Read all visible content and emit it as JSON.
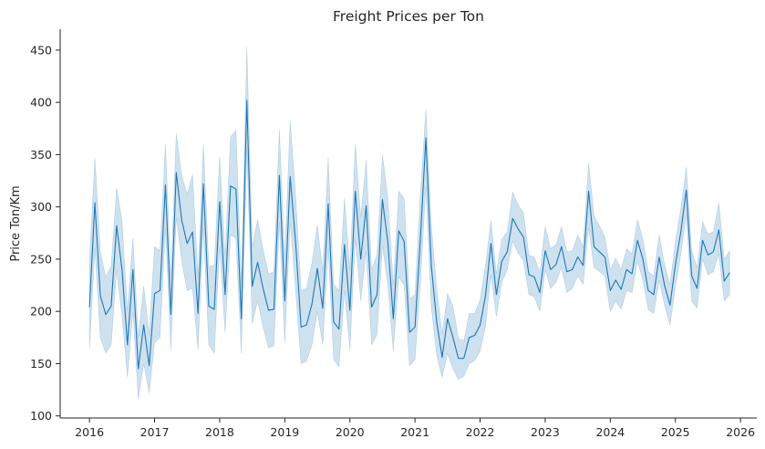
{
  "chart_data": {
    "type": "line",
    "title": "Freight Prices per Ton",
    "xlabel": "",
    "ylabel": "Price Ton/Km",
    "xlim": [
      2015.55,
      2026.25
    ],
    "ylim": [
      98,
      470
    ],
    "x_ticks": [
      2016,
      2017,
      2018,
      2019,
      2020,
      2021,
      2022,
      2023,
      2024,
      2025,
      2026
    ],
    "x_tick_labels": [
      "2016",
      "2017",
      "2018",
      "2019",
      "2020",
      "2021",
      "2022",
      "2023",
      "2024",
      "2025",
      "2026"
    ],
    "y_ticks": [
      100,
      150,
      200,
      250,
      300,
      350,
      400,
      450
    ],
    "y_tick_labels": [
      "100",
      "150",
      "200",
      "250",
      "300",
      "350",
      "400",
      "450"
    ],
    "grid": false,
    "line_color": "#1f77b4",
    "band_color": "#1f77b4",
    "x": [
      2016.0,
      2016.083,
      2016.167,
      2016.25,
      2016.333,
      2016.417,
      2016.5,
      2016.583,
      2016.667,
      2016.75,
      2016.833,
      2016.917,
      2017.0,
      2017.083,
      2017.167,
      2017.25,
      2017.333,
      2017.417,
      2017.5,
      2017.583,
      2017.667,
      2017.75,
      2017.833,
      2017.917,
      2018.0,
      2018.083,
      2018.167,
      2018.25,
      2018.333,
      2018.417,
      2018.5,
      2018.583,
      2018.667,
      2018.75,
      2018.833,
      2018.917,
      2019.0,
      2019.083,
      2019.167,
      2019.25,
      2019.333,
      2019.417,
      2019.5,
      2019.583,
      2019.667,
      2019.75,
      2019.833,
      2019.917,
      2020.0,
      2020.083,
      2020.167,
      2020.25,
      2020.333,
      2020.417,
      2020.5,
      2020.583,
      2020.667,
      2020.75,
      2020.833,
      2020.917,
      2021.0,
      2021.083,
      2021.167,
      2021.25,
      2021.333,
      2021.417,
      2021.5,
      2021.583,
      2021.667,
      2021.75,
      2021.833,
      2021.917,
      2022.0,
      2022.083,
      2022.167,
      2022.25,
      2022.333,
      2022.417,
      2022.5,
      2022.583,
      2022.667,
      2022.75,
      2022.833,
      2022.917,
      2023.0,
      2023.083,
      2023.167,
      2023.25,
      2023.333,
      2023.417,
      2023.5,
      2023.583,
      2023.667,
      2023.75,
      2023.833,
      2023.917,
      2024.0,
      2024.083,
      2024.167,
      2024.25,
      2024.333,
      2024.417,
      2024.5,
      2024.583,
      2024.667,
      2024.75,
      2024.833,
      2024.917,
      2025.0,
      2025.083,
      2025.167,
      2025.25,
      2025.333,
      2025.417,
      2025.5,
      2025.583,
      2025.667,
      2025.75,
      2025.833
    ],
    "series": [
      {
        "values": [
          204,
          304,
          215,
          197,
          205,
          282,
          240,
          168,
          240,
          145,
          187,
          148,
          217,
          220,
          321,
          197,
          333,
          287,
          265,
          276,
          198,
          322,
          205,
          202,
          305,
          216,
          320,
          317,
          193,
          402,
          224,
          247,
          222,
          201,
          202,
          330,
          210,
          329,
          265,
          185,
          187,
          207,
          241,
          203,
          303,
          190,
          183,
          264,
          201,
          315,
          250,
          301,
          204,
          216,
          307,
          266,
          193,
          277,
          267,
          180,
          185,
          270,
          366,
          244,
          190,
          156,
          193,
          175,
          155,
          155,
          175,
          177,
          187,
          215,
          265,
          216,
          248,
          257,
          289,
          279,
          271,
          235,
          233,
          218,
          258,
          240,
          245,
          262,
          238,
          240,
          252,
          244,
          315,
          262,
          257,
          252,
          220,
          230,
          221,
          240,
          236,
          268,
          250,
          220,
          216,
          252,
          225,
          206,
          245,
          276,
          316,
          234,
          222,
          268,
          254,
          257,
          278,
          229,
          237
        ],
        "lower": [
          164,
          261,
          175,
          160,
          168,
          240,
          195,
          137,
          200,
          116,
          150,
          122,
          170,
          175,
          280,
          163,
          290,
          248,
          220,
          222,
          163,
          280,
          168,
          160,
          262,
          180,
          273,
          270,
          160,
          355,
          188,
          210,
          185,
          165,
          167,
          285,
          170,
          285,
          220,
          150,
          152,
          168,
          200,
          168,
          260,
          154,
          147,
          220,
          163,
          270,
          210,
          258,
          168,
          178,
          263,
          225,
          162,
          233,
          225,
          148,
          154,
          228,
          320,
          205,
          158,
          137,
          160,
          145,
          135,
          138,
          150,
          153,
          162,
          186,
          235,
          195,
          228,
          240,
          267,
          256,
          248,
          216,
          214,
          200,
          240,
          222,
          228,
          242,
          218,
          222,
          234,
          226,
          280,
          242,
          238,
          234,
          200,
          210,
          202,
          220,
          218,
          248,
          230,
          202,
          198,
          230,
          206,
          187,
          223,
          255,
          292,
          210,
          203,
          250,
          235,
          238,
          255,
          210,
          216
        ],
        "upper": [
          248,
          347,
          257,
          233,
          243,
          318,
          287,
          200,
          270,
          175,
          224,
          178,
          262,
          258,
          360,
          233,
          370,
          330,
          312,
          331,
          233,
          360,
          243,
          244,
          348,
          252,
          367,
          373,
          227,
          453,
          261,
          288,
          259,
          236,
          238,
          374,
          250,
          383,
          310,
          220,
          222,
          246,
          283,
          238,
          347,
          226,
          220,
          308,
          240,
          360,
          290,
          345,
          240,
          254,
          350,
          308,
          225,
          315,
          308,
          212,
          216,
          312,
          393,
          283,
          222,
          178,
          217,
          205,
          174,
          172,
          198,
          198,
          211,
          244,
          287,
          236,
          269,
          276,
          314,
          302,
          294,
          254,
          252,
          237,
          281,
          260,
          264,
          281,
          257,
          258,
          273,
          262,
          342,
          291,
          282,
          271,
          240,
          251,
          240,
          260,
          255,
          288,
          269,
          238,
          234,
          273,
          245,
          225,
          267,
          298,
          338,
          258,
          242,
          286,
          274,
          276,
          304,
          250,
          258
        ]
      }
    ]
  }
}
